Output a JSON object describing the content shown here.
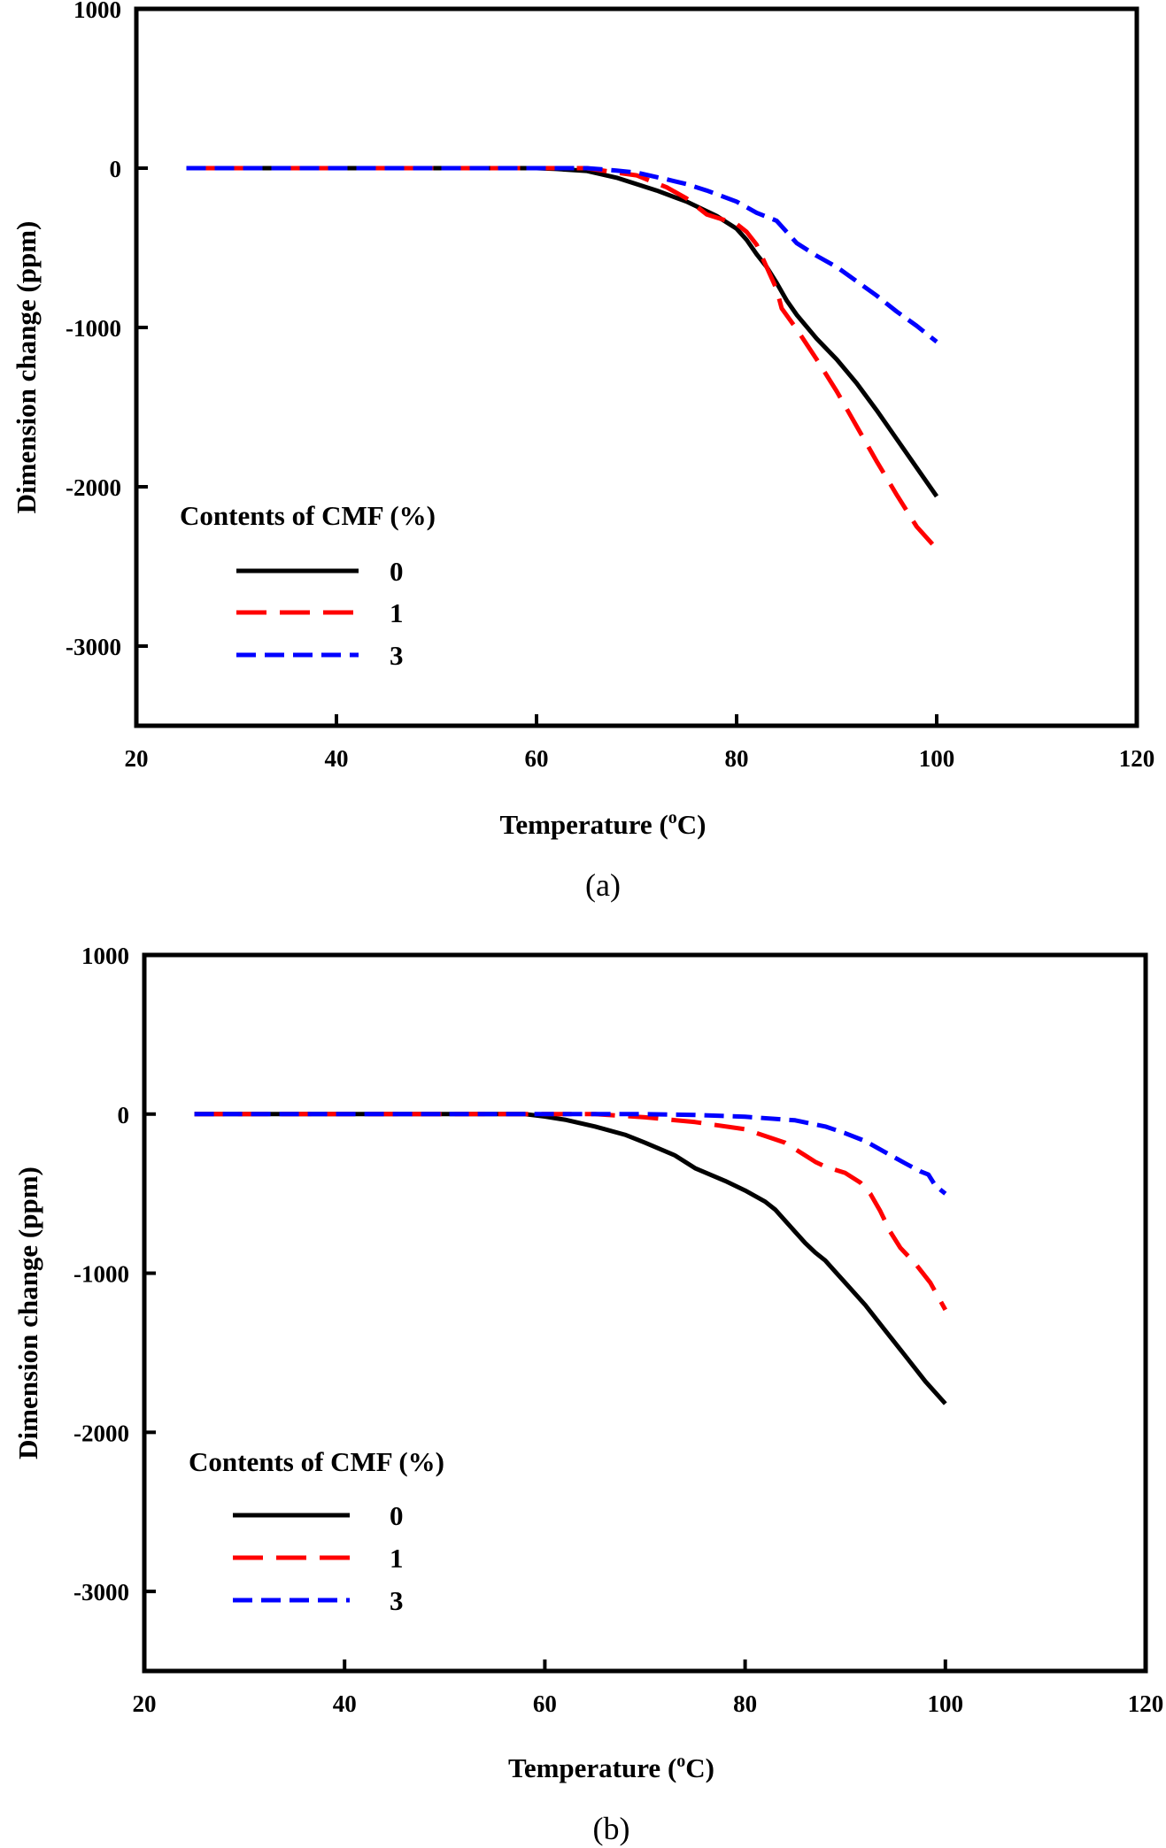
{
  "chart_data": [
    {
      "type": "line",
      "panel_label": "(a)",
      "title": "",
      "xlabel_main": "Temperature (",
      "xlabel_sup": "o",
      "xlabel_end": "C)",
      "ylabel": "Dimension change (ppm)",
      "xlim": [
        20,
        120
      ],
      "ylim": [
        -3500,
        1000
      ],
      "xticks": [
        20,
        40,
        60,
        80,
        100,
        120
      ],
      "yticks": [
        1000,
        0,
        -1000,
        -2000,
        -3000
      ],
      "grid": false,
      "legend": {
        "title": "Contents of CMF (%)",
        "placement": "lower-left"
      },
      "series": [
        {
          "name": "0",
          "color": "#000000",
          "style": "solid",
          "x": [
            25,
            30,
            40,
            50,
            55,
            60,
            62,
            65,
            68,
            70,
            72,
            75,
            78,
            80,
            81,
            82,
            83,
            84,
            85,
            86,
            88,
            90,
            92,
            94,
            96,
            98,
            100
          ],
          "y": [
            0,
            0,
            0,
            0,
            0,
            0,
            -5,
            -17,
            -60,
            -100,
            -140,
            -210,
            -300,
            -380,
            -450,
            -540,
            -620,
            -720,
            -830,
            -920,
            -1070,
            -1200,
            -1350,
            -1520,
            -1700,
            -1880,
            -2060
          ]
        },
        {
          "name": "1",
          "color": "#ff0000",
          "style": "long-dash",
          "x": [
            25,
            40,
            60,
            65,
            68,
            70,
            73,
            75,
            77,
            80,
            81,
            82,
            83,
            84,
            84.5,
            86,
            88,
            90,
            92,
            94,
            96,
            98,
            100
          ],
          "y": [
            0,
            0,
            0,
            0,
            -28,
            -45,
            -120,
            -190,
            -290,
            -350,
            -400,
            -480,
            -620,
            -760,
            -880,
            -1010,
            -1200,
            -1400,
            -1620,
            -1840,
            -2050,
            -2250,
            -2390
          ]
        },
        {
          "name": "3",
          "color": "#0000ff",
          "style": "short-dash",
          "x": [
            25,
            40,
            60,
            65,
            68,
            70,
            73,
            75,
            77,
            80,
            82,
            84,
            85,
            86,
            88,
            90,
            92,
            94,
            96,
            98,
            100
          ],
          "y": [
            0,
            0,
            0,
            0,
            -15,
            -28,
            -70,
            -100,
            -140,
            -210,
            -280,
            -330,
            -400,
            -470,
            -550,
            -620,
            -710,
            -800,
            -900,
            -990,
            -1090
          ]
        }
      ]
    },
    {
      "type": "line",
      "panel_label": "(b)",
      "title": "",
      "xlabel_main": "Temperature (",
      "xlabel_sup": "o",
      "xlabel_end": "C)",
      "ylabel": "Dimension change (ppm)",
      "xlim": [
        20,
        120
      ],
      "ylim": [
        -3500,
        1000
      ],
      "xticks": [
        20,
        40,
        60,
        80,
        100,
        120
      ],
      "yticks": [
        1000,
        0,
        -1000,
        -2000,
        -3000
      ],
      "grid": false,
      "legend": {
        "title": "Contents of CMF (%)",
        "placement": "lower-left"
      },
      "series": [
        {
          "name": "0",
          "color": "#000000",
          "style": "solid",
          "x": [
            25,
            40,
            58,
            60,
            62,
            65,
            68,
            70,
            73,
            75,
            78,
            80,
            82,
            83,
            84,
            85,
            86,
            87,
            88,
            89,
            90,
            92,
            94,
            96,
            98,
            100
          ],
          "y": [
            0,
            0,
            0,
            -15,
            -35,
            -78,
            -130,
            -180,
            -260,
            -340,
            -420,
            -480,
            -550,
            -600,
            -670,
            -740,
            -810,
            -870,
            -920,
            -990,
            -1060,
            -1200,
            -1360,
            -1520,
            -1680,
            -1820
          ]
        },
        {
          "name": "1",
          "color": "#ff0000",
          "style": "long-dash",
          "x": [
            25,
            40,
            60,
            65,
            70,
            75,
            80,
            84,
            86,
            87,
            88,
            90,
            91.5,
            92.5,
            93.5,
            94.5,
            95.5,
            97,
            98.5,
            100
          ],
          "y": [
            0,
            0,
            0,
            0,
            -20,
            -50,
            -95,
            -180,
            -260,
            -300,
            -330,
            -370,
            -430,
            -500,
            -610,
            -740,
            -840,
            -940,
            -1060,
            -1230
          ]
        },
        {
          "name": "3",
          "color": "#0000ff",
          "style": "short-dash",
          "x": [
            25,
            40,
            60,
            70,
            75,
            80,
            85,
            88,
            90,
            92,
            94,
            96,
            97.5,
            98.3,
            99,
            100
          ],
          "y": [
            0,
            0,
            0,
            0,
            -5,
            -17,
            -39,
            -78,
            -120,
            -170,
            -240,
            -310,
            -360,
            -380,
            -450,
            -500
          ]
        }
      ]
    }
  ]
}
